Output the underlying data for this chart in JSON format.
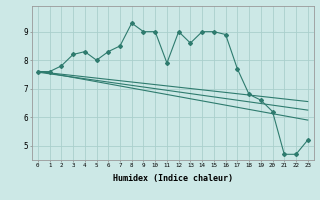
{
  "xlabel": "Humidex (Indice chaleur)",
  "ylabel": "",
  "background_color": "#cce8e6",
  "grid_color": "#aacfcc",
  "line_color": "#2e7b6e",
  "xlim": [
    -0.5,
    23.5
  ],
  "ylim": [
    4.5,
    9.9
  ],
  "x_ticks": [
    0,
    1,
    2,
    3,
    4,
    5,
    6,
    7,
    8,
    9,
    10,
    11,
    12,
    13,
    14,
    15,
    16,
    17,
    18,
    19,
    20,
    21,
    22,
    23
  ],
  "y_ticks": [
    5,
    6,
    7,
    8,
    9
  ],
  "series": [
    {
      "x": [
        0,
        1,
        2,
        3,
        4,
        5,
        6,
        7,
        8,
        9,
        10,
        11,
        12,
        13,
        14,
        15,
        16,
        17,
        18,
        19,
        20,
        21,
        22,
        23
      ],
      "y": [
        7.6,
        7.6,
        7.8,
        8.2,
        8.3,
        8.0,
        8.3,
        8.5,
        9.3,
        9.0,
        9.0,
        7.9,
        9.0,
        8.6,
        9.0,
        9.0,
        8.9,
        7.7,
        6.8,
        6.6,
        6.2,
        4.7,
        4.7,
        5.2
      ],
      "marker": true
    },
    {
      "x": [
        0,
        23
      ],
      "y": [
        7.6,
        6.55
      ],
      "marker": false
    },
    {
      "x": [
        0,
        23
      ],
      "y": [
        7.58,
        6.25
      ],
      "marker": false
    },
    {
      "x": [
        0,
        23
      ],
      "y": [
        7.62,
        5.9
      ],
      "marker": false
    }
  ]
}
